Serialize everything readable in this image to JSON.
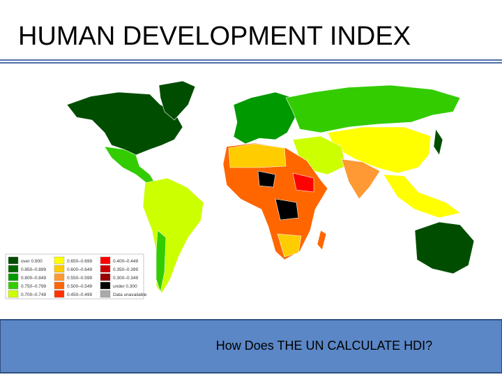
{
  "header": {
    "title": "HUMAN DEVELOPMENT INDEX"
  },
  "map": {
    "legend": [
      {
        "label": "over 0.900",
        "color": "#004d00"
      },
      {
        "label": "0.850–0.899",
        "color": "#006600"
      },
      {
        "label": "0.800–0.849",
        "color": "#009900"
      },
      {
        "label": "0.750–0.799",
        "color": "#33cc00"
      },
      {
        "label": "0.700–0.749",
        "color": "#ccff00"
      },
      {
        "label": "0.650–0.699",
        "color": "#ffff00"
      },
      {
        "label": "0.600–0.649",
        "color": "#ffcc00"
      },
      {
        "label": "0.550–0.599",
        "color": "#ff9933"
      },
      {
        "label": "0.500–0.549",
        "color": "#ff6600"
      },
      {
        "label": "0.450–0.499",
        "color": "#ff3300"
      },
      {
        "label": "0.400–0.449",
        "color": "#ff0000"
      },
      {
        "label": "0.350–0.399",
        "color": "#cc0000"
      },
      {
        "label": "0.300–0.349",
        "color": "#990000"
      },
      {
        "label": "under 0.300",
        "color": "#000000"
      },
      {
        "label": "Data unavailable",
        "color": "#aaaaaa"
      }
    ]
  },
  "footer": {
    "text": "How Does THE UN CALCULATE HDI?"
  }
}
